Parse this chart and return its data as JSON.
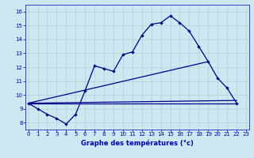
{
  "xlabel": "Graphe des températures (°c)",
  "x_hours": [
    0,
    1,
    2,
    3,
    4,
    5,
    6,
    7,
    8,
    9,
    10,
    11,
    12,
    13,
    14,
    15,
    16,
    17,
    18,
    19,
    20,
    21,
    22,
    23
  ],
  "line1_y": [
    9.4,
    9.0,
    8.6,
    8.3,
    7.9,
    8.6,
    10.3,
    12.1,
    11.9,
    11.7,
    12.9,
    13.1,
    14.3,
    15.1,
    15.2,
    15.7,
    15.2,
    14.6,
    13.5,
    12.4,
    11.2,
    10.5,
    9.4,
    null
  ],
  "ref_lines": [
    {
      "x": [
        0,
        22
      ],
      "y": [
        9.4,
        9.4
      ]
    },
    {
      "x": [
        0,
        22
      ],
      "y": [
        9.4,
        9.6
      ]
    },
    {
      "x": [
        0,
        19
      ],
      "y": [
        9.4,
        12.4
      ]
    }
  ],
  "ylim": [
    7.5,
    16.5
  ],
  "xlim": [
    -0.3,
    23.3
  ],
  "yticks": [
    8,
    9,
    10,
    11,
    12,
    13,
    14,
    15,
    16
  ],
  "xticks": [
    0,
    1,
    2,
    3,
    4,
    5,
    6,
    7,
    8,
    9,
    10,
    11,
    12,
    13,
    14,
    15,
    16,
    17,
    18,
    19,
    20,
    21,
    22,
    23
  ],
  "line_color": "#00008B",
  "bg_color": "#cce8f0",
  "grid_color": "#b0c8d0",
  "axis_label_color": "#0000bb",
  "tick_color": "#0000bb",
  "tick_fontsize": 5.0,
  "xlabel_fontsize": 6.0,
  "linewidth": 0.9,
  "markersize": 2.2
}
